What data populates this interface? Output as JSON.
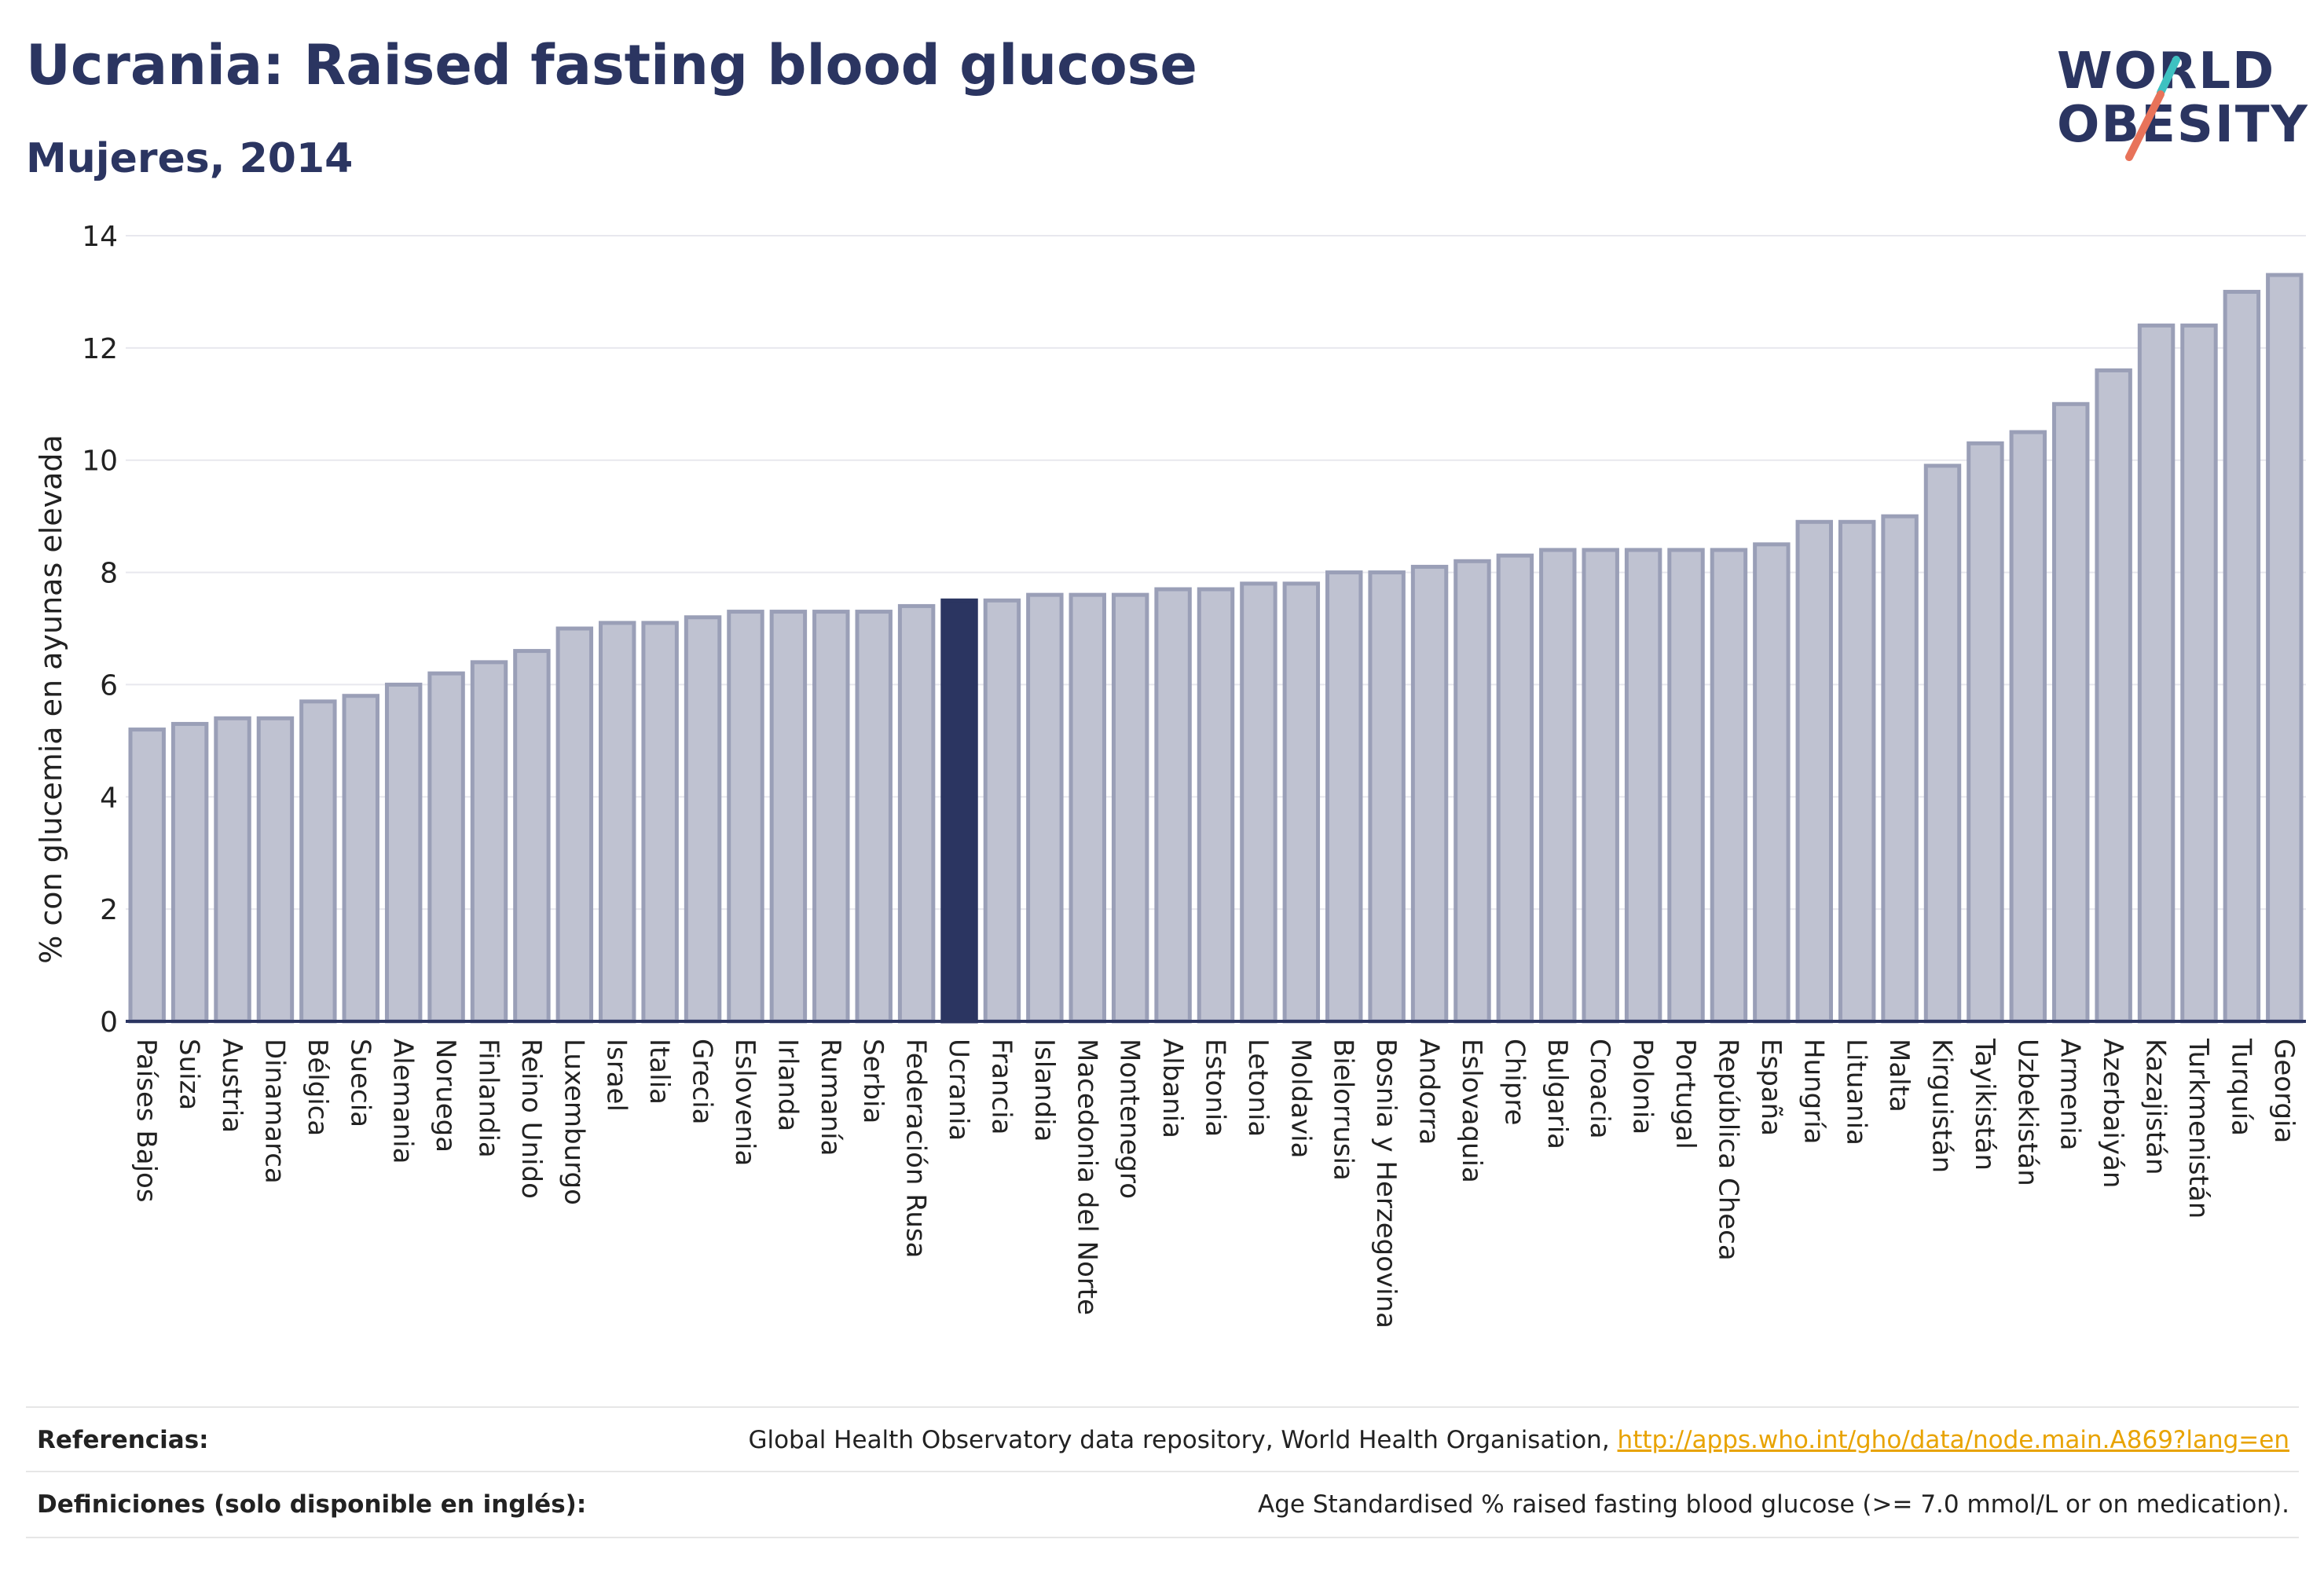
{
  "header": {
    "title": "Ucrania: Raised fasting blood glucose",
    "subtitle": "Mujeres, 2014"
  },
  "logo": {
    "line1": "WORLD",
    "line2": "OBESITY",
    "colors": {
      "text": "#2b3561",
      "slash_teal": "#3ec1c1",
      "slash_coral": "#e8735a"
    }
  },
  "colors": {
    "bar_fill": "#bfc2d1",
    "bar_stroke": "#9a9fb7",
    "highlight": "#2b3561",
    "grid": "#e8e8ee",
    "axis": "#2b3561"
  },
  "chart_data": {
    "type": "bar",
    "ylabel": "% con glucemia en ayunas elevada",
    "ylim": [
      0,
      14
    ],
    "yticks": [
      0,
      2,
      4,
      6,
      8,
      10,
      12,
      14
    ],
    "grid": true,
    "highlight": "Ucrania",
    "categories": [
      "Países Bajos",
      "Suiza",
      "Austria",
      "Dinamarca",
      "Bélgica",
      "Suecia",
      "Alemania",
      "Noruega",
      "Finlandia",
      "Reino Unido",
      "Luxemburgo",
      "Israel",
      "Italia",
      "Grecia",
      "Eslovenia",
      "Irlanda",
      "Rumanía",
      "Serbia",
      "Federación Rusa",
      "Ucrania",
      "Francia",
      "Islandia",
      "Macedonia del Norte",
      "Montenegro",
      "Albania",
      "Estonia",
      "Letonia",
      "Moldavia",
      "Bielorrusia",
      "Bosnia y Herzegovina",
      "Andorra",
      "Eslovaquia",
      "Chipre",
      "Bulgaria",
      "Croacia",
      "Polonia",
      "Portugal",
      "República Checa",
      "España",
      "Hungría",
      "Lituania",
      "Malta",
      "Kirguistán",
      "Tayikistán",
      "Uzbekistán",
      "Armenia",
      "Azerbaiyán",
      "Kazajistán",
      "Turkmenistán",
      "Turquía",
      "Georgia"
    ],
    "values": [
      5.2,
      5.3,
      5.4,
      5.4,
      5.7,
      5.8,
      6.0,
      6.2,
      6.4,
      6.6,
      7.0,
      7.1,
      7.1,
      7.2,
      7.3,
      7.3,
      7.3,
      7.3,
      7.4,
      7.5,
      7.5,
      7.6,
      7.6,
      7.6,
      7.7,
      7.7,
      7.8,
      7.8,
      8.0,
      8.0,
      8.1,
      8.2,
      8.3,
      8.4,
      8.4,
      8.4,
      8.4,
      8.4,
      8.5,
      8.9,
      8.9,
      9.0,
      9.9,
      10.3,
      10.5,
      11.0,
      11.6,
      12.4,
      12.4,
      13.0,
      13.3
    ]
  },
  "footer": {
    "references_label": "Referencias:",
    "references_text": "Global Health Observatory data repository, World Health Organisation, ",
    "references_link": "http://apps.who.int/gho/data/node.main.A869?lang=en",
    "definitions_label": "Definiciones (solo disponible en inglés):",
    "definitions_text": "Age Standardised % raised fasting blood glucose (>= 7.0 mmol/L or on medication)."
  }
}
